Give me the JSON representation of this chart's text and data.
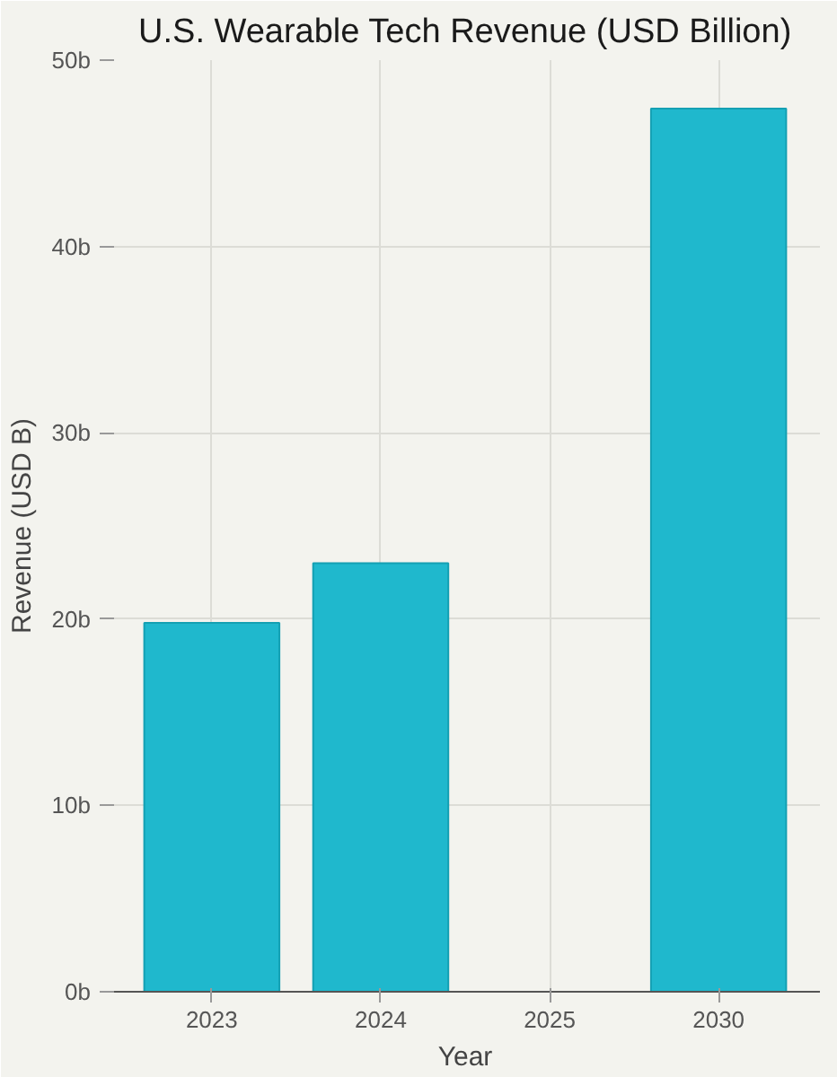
{
  "chart_data": {
    "type": "bar",
    "title": "U.S. Wearable Tech Revenue (USD Billion)",
    "xlabel": "Year",
    "ylabel": "Revenue (USD B)",
    "categories": [
      "2023",
      "2024",
      "2025",
      "2030"
    ],
    "values": [
      19.8,
      23.0,
      null,
      47.4
    ],
    "color": "#1fb8cd",
    "ylim": [
      0,
      50
    ],
    "yticks": [
      {
        "value": 0,
        "label": "0b"
      },
      {
        "value": 10,
        "label": "10b"
      },
      {
        "value": 20,
        "label": "20b"
      },
      {
        "value": 30,
        "label": "30b"
      },
      {
        "value": 40,
        "label": "40b"
      },
      {
        "value": 50,
        "label": "50b"
      }
    ],
    "grid": true
  }
}
